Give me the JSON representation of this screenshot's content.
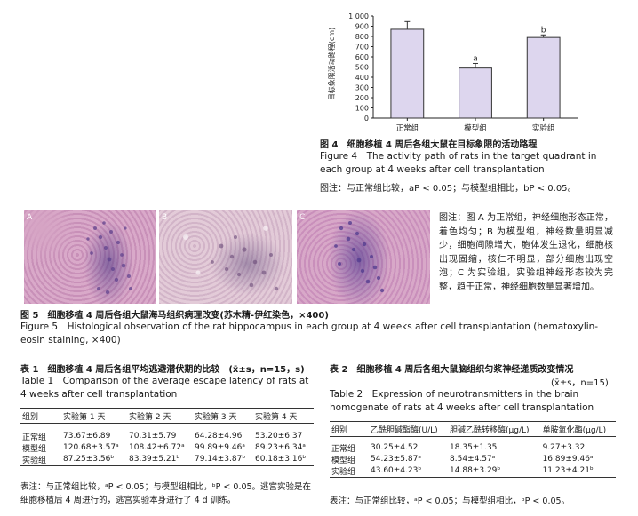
{
  "figure4": {
    "chart_data": {
      "type": "bar",
      "categories": [
        "正常组",
        "模型组",
        "实验组"
      ],
      "values": [
        870,
        490,
        790
      ],
      "errors": [
        75,
        45,
        25
      ],
      "sig_labels": [
        "",
        "a",
        "b"
      ],
      "ylabel": "目标象限活动路程(cm)",
      "ylim": [
        0,
        1000
      ],
      "yticks": [
        "0",
        "100",
        "200",
        "300",
        "400",
        "500",
        "600",
        "700",
        "800",
        "900",
        "1 000"
      ],
      "bar_color": "#ddd6ee"
    },
    "caption_cn": "图 4　细胞移植 4 周后各组大鼠在目标象限的活动路程",
    "caption_en": "Figure 4　The activity path of rats in the target quadrant in each group at 4 weeks after cell transplantation",
    "note": "图注：与正常组比较，aP < 0.05；与模型组相比，bP < 0.05。"
  },
  "figure5": {
    "panels": [
      "A",
      "B",
      "C"
    ],
    "side_note": "图注：图 A 为正常组，神经细胞形态正常，着色均匀；B 为模型组，神经数量明显减少，细胞间隙增大，胞体发生退化，细胞核出现固缩，核仁不明显，部分细胞出现空泡；C 为实验组，实验组神经形态较为完整，趋于正常，神经细胞数量显著增加。",
    "caption_cn": "图 5　细胞移植 4 周后各组大鼠海马组织病理改变(苏木精-伊红染色，×400)",
    "caption_en": "Figure 5　Histological observation of the rat hippocampus in each group at 4 weeks after cell transplantation (hematoxylin-eosin staining, ×400)"
  },
  "table1": {
    "title_cn": "表 1　细胞移植 4 周后各组平均逃避潜伏期的比较　(x̄±s，n=15，s)",
    "title_en": "Table 1　Comparison of the average escape latency of rats at 4 weeks after cell transplantation",
    "headers": [
      "组别",
      "实验第 1 天",
      "实验第 2 天",
      "实验第 3 天",
      "实验第 4 天"
    ],
    "rows": [
      [
        "正常组",
        "73.67±6.89",
        "70.31±5.79",
        "64.28±4.96",
        "53.20±6.37"
      ],
      [
        "模型组",
        "120.68±3.57ᵃ",
        "108.42±6.72ᵃ",
        "99.89±9.46ᵃ",
        "89.23±6.34ᵃ"
      ],
      [
        "实验组",
        "87.25±3.56ᵇ",
        "83.39±5.21ᵇ",
        "79.14±3.87ᵇ",
        "60.18±3.16ᵇ"
      ]
    ],
    "note": "表注：与正常组比较，ᵃP < 0.05；与模型组相比，ᵇP < 0.05。逃宫实验是在细胞移植后 4 周进行的，逃宫实验本身进行了 4 d 训练。"
  },
  "table2": {
    "title_cn": "表 2　细胞移植 4 周后各组大鼠脑组织匀浆神经递质改变情况",
    "title_stats": "(x̄±s，n=15)",
    "title_en": "Table 2　Expression of neurotransmitters in the brain homogenate of rats at 4 weeks after cell transplantation",
    "headers": [
      "组别",
      "乙酰胆碱酯酶(U/L)",
      "胆碱乙酰转移酶(μg/L)",
      "单胺氧化酶(μg/L)"
    ],
    "rows": [
      [
        "正常组",
        "30.25±4.52",
        "18.35±1.35",
        "9.27±3.32"
      ],
      [
        "模型组",
        "54.23±5.87ᵃ",
        "8.54±4.57ᵃ",
        "16.89±9.46ᵃ"
      ],
      [
        "实验组",
        "43.60±4.23ᵇ",
        "14.88±3.29ᵇ",
        "11.23±4.21ᵇ"
      ]
    ],
    "note": "表注：与正常组比较，ᵃP < 0.05；与模型组相比，ᵇP < 0.05。"
  }
}
